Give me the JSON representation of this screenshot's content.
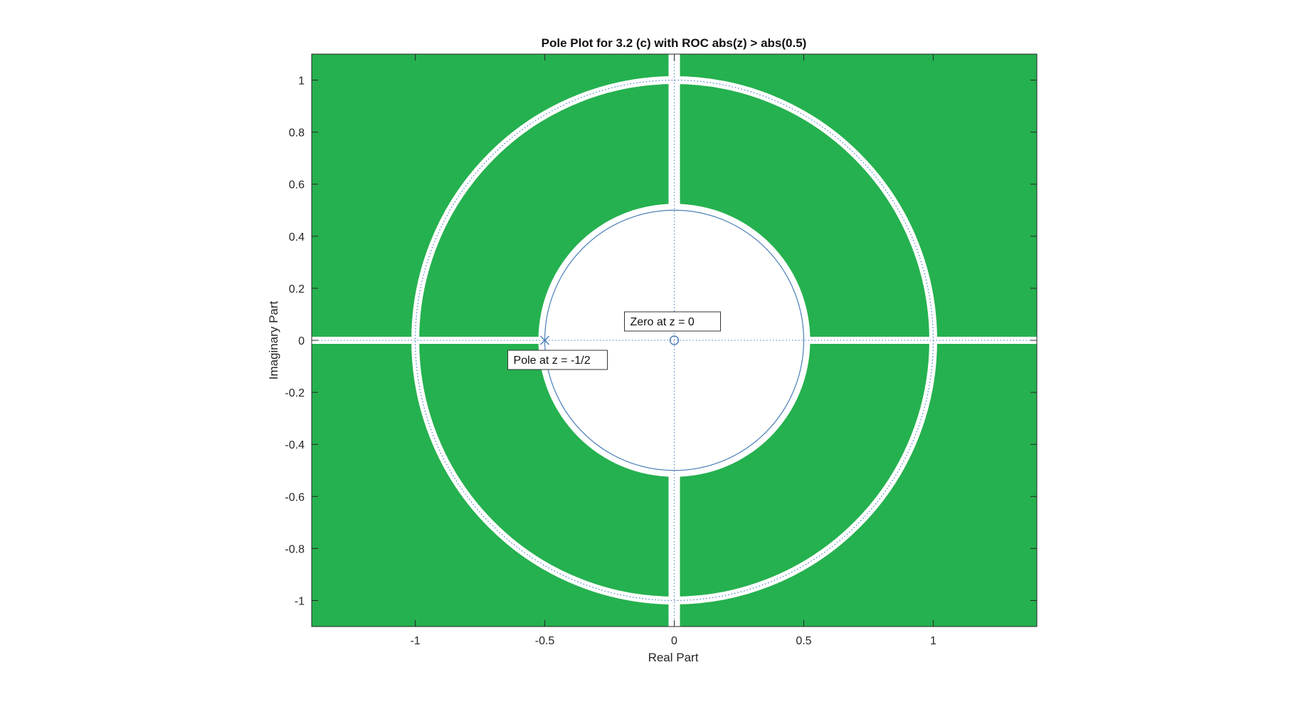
{
  "chart_data": {
    "type": "scatter",
    "title": "Pole Plot for 3.2 (c) with ROC abs(z) > abs(0.5)",
    "xlabel": "Real Part",
    "ylabel": "Imaginary Part",
    "xlim": [
      -1.4,
      1.4
    ],
    "ylim": [
      -1.1,
      1.1
    ],
    "xticks": [
      -1,
      -0.5,
      0,
      0.5,
      1
    ],
    "xtick_labels": [
      "-1",
      "-0.5",
      "0",
      "0.5",
      "1"
    ],
    "yticks": [
      -1,
      -0.8,
      -0.6,
      -0.4,
      -0.2,
      0,
      0.2,
      0.4,
      0.6,
      0.8,
      1
    ],
    "ytick_labels": [
      "-1",
      "-0.8",
      "-0.6",
      "-0.4",
      "-0.2",
      "0",
      "0.2",
      "0.4",
      "0.6",
      "0.8",
      "1"
    ],
    "grid": false,
    "series": [
      {
        "marker": "x",
        "points": [
          {
            "x": -0.5,
            "y": 0
          }
        ]
      },
      {
        "marker": "o",
        "points": [
          {
            "x": 0,
            "y": 0
          }
        ]
      }
    ],
    "circles": [
      {
        "radius": 1,
        "style": "dotted"
      },
      {
        "radius": 0.5,
        "style": "solid"
      }
    ],
    "roc": {
      "inner_radius": 0.5,
      "fill_color": "#25B14F"
    },
    "annotations": [
      {
        "text": "Zero at z = 0",
        "x": 0,
        "y": 0
      },
      {
        "text": "Pole at z = -1/2",
        "x": -0.5,
        "y": 0
      }
    ],
    "colors": {
      "roc_fill": "#25B14F",
      "curve": "#4A7FB8",
      "axis": "#262626"
    }
  }
}
